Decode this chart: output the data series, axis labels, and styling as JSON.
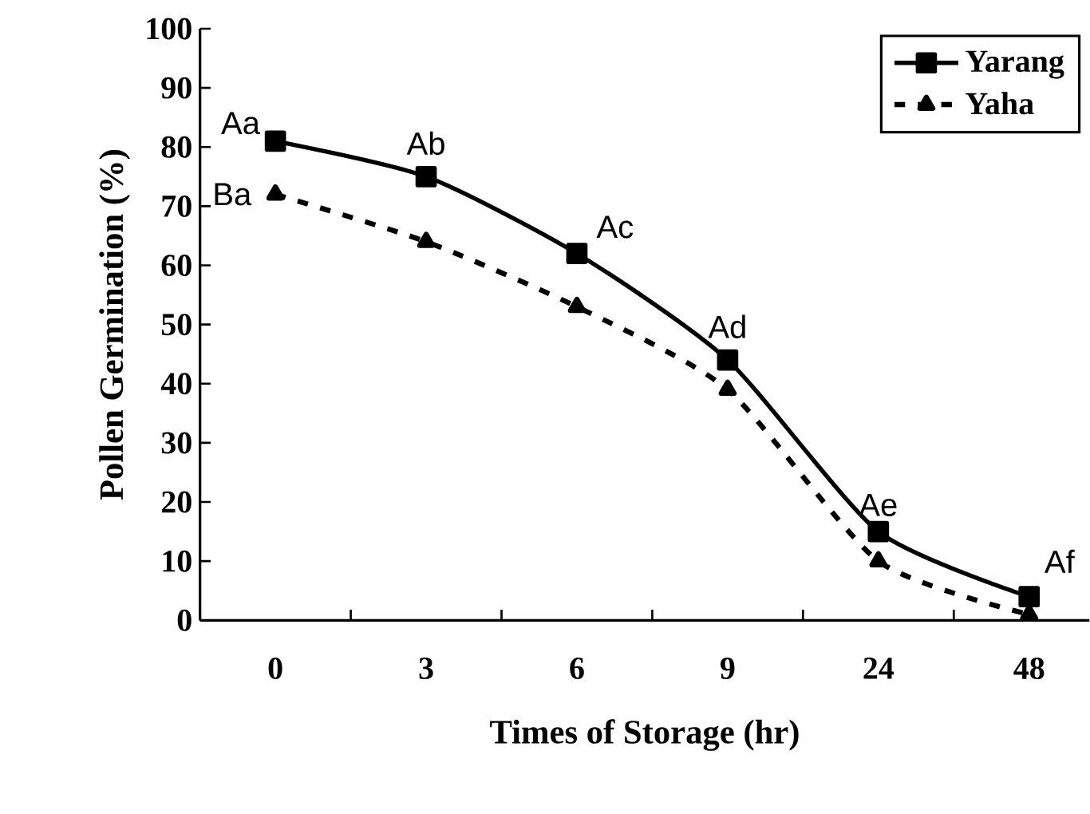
{
  "chart_data": {
    "type": "line",
    "xlabel": "Times of Storage (hr)",
    "ylabel": "Pollen Germination (%)",
    "categories": [
      "0",
      "3",
      "6",
      "9",
      "24",
      "48"
    ],
    "series": [
      {
        "name": "Yarang",
        "color": "#000000",
        "marker": "square",
        "line_style": "solid",
        "values": [
          81,
          75,
          62,
          44,
          15,
          4
        ]
      },
      {
        "name": "Yaha",
        "color": "#000000",
        "marker": "triangle",
        "line_style": "dashed",
        "values": [
          72,
          64,
          53,
          39,
          10,
          1
        ]
      }
    ],
    "ylim": [
      0,
      100
    ],
    "yticks": [
      0,
      10,
      20,
      30,
      40,
      50,
      60,
      70,
      80,
      90,
      100
    ],
    "legend": "top right",
    "grid": false,
    "annotations": [
      {
        "text": "Aa",
        "x": "0",
        "y": 81
      },
      {
        "text": "Ab",
        "x": "3",
        "y": 75
      },
      {
        "text": "Ac",
        "x": "6",
        "y": 62
      },
      {
        "text": "Ad",
        "x": "9",
        "y": 44
      },
      {
        "text": "Ae",
        "x": "24",
        "y": 15
      },
      {
        "text": "Af",
        "x": "48",
        "y": 4
      },
      {
        "text": "Ba",
        "x": "0",
        "y": 72
      }
    ]
  }
}
